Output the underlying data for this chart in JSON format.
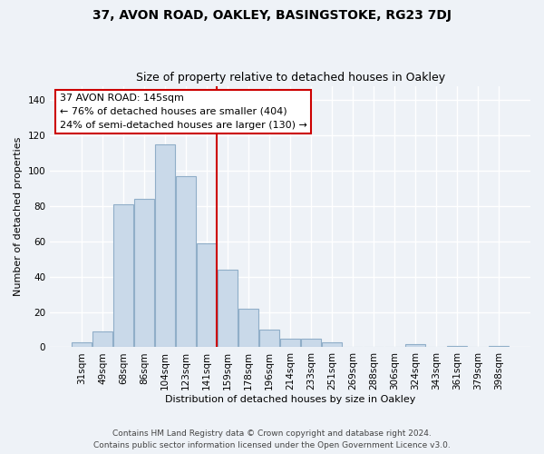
{
  "title1": "37, AVON ROAD, OAKLEY, BASINGSTOKE, RG23 7DJ",
  "title2": "Size of property relative to detached houses in Oakley",
  "xlabel": "Distribution of detached houses by size in Oakley",
  "ylabel": "Number of detached properties",
  "footer1": "Contains HM Land Registry data © Crown copyright and database right 2024.",
  "footer2": "Contains public sector information licensed under the Open Government Licence v3.0.",
  "annotation_line1": "37 AVON ROAD: 145sqm",
  "annotation_line2": "← 76% of detached houses are smaller (404)",
  "annotation_line3": "24% of semi-detached houses are larger (130) →",
  "bar_labels": [
    "31sqm",
    "49sqm",
    "68sqm",
    "86sqm",
    "104sqm",
    "123sqm",
    "141sqm",
    "159sqm",
    "178sqm",
    "196sqm",
    "214sqm",
    "233sqm",
    "251sqm",
    "269sqm",
    "288sqm",
    "306sqm",
    "324sqm",
    "343sqm",
    "361sqm",
    "379sqm",
    "398sqm"
  ],
  "bar_values": [
    3,
    9,
    81,
    84,
    115,
    97,
    59,
    44,
    22,
    10,
    5,
    5,
    3,
    0,
    0,
    0,
    2,
    0,
    1,
    0,
    1
  ],
  "bar_color": "#c9d9e9",
  "bar_edge_color": "#90aec8",
  "vline_color": "#cc0000",
  "ylim": [
    0,
    148
  ],
  "yticks": [
    0,
    20,
    40,
    60,
    80,
    100,
    120,
    140
  ],
  "annotation_box_facecolor": "#ffffff",
  "annotation_box_edgecolor": "#cc0000",
  "bg_color": "#eef2f7",
  "grid_color": "#ffffff",
  "title1_fontsize": 10,
  "title2_fontsize": 9,
  "ylabel_fontsize": 8,
  "xlabel_fontsize": 8,
  "tick_fontsize": 7.5,
  "footer_fontsize": 6.5
}
